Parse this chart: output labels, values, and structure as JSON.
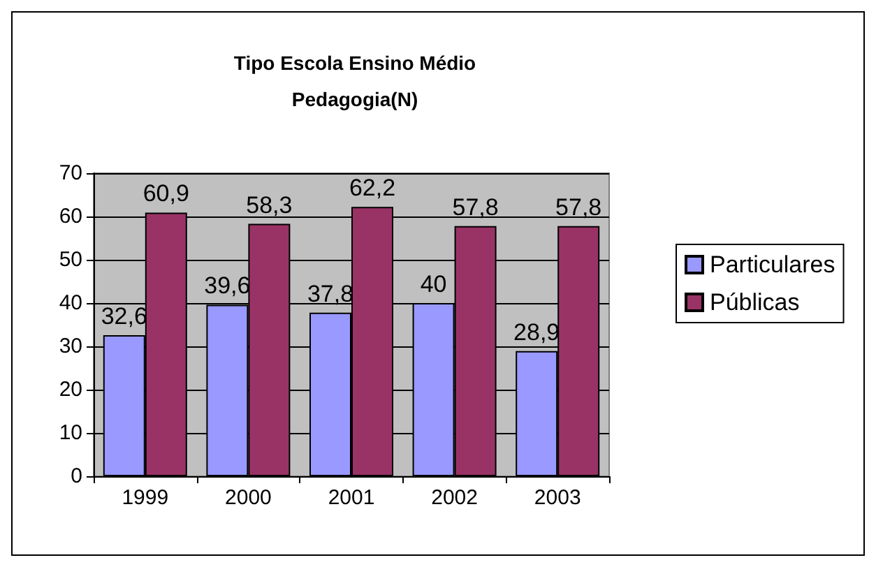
{
  "chart_data": {
    "type": "bar",
    "title": "Tipo Escola Ensino Médio\nPedagogia(N)",
    "categories": [
      "1999",
      "2000",
      "2001",
      "2002",
      "2003"
    ],
    "series": [
      {
        "name": "Particulares",
        "color": "#9999ff",
        "values": [
          32.6,
          39.6,
          37.8,
          40,
          28.9
        ],
        "value_labels": [
          "32,6",
          "39,6",
          "37,8",
          "40",
          "28,9"
        ]
      },
      {
        "name": "Públicas",
        "color": "#993366",
        "values": [
          60.9,
          58.3,
          62.2,
          57.8,
          57.8
        ],
        "value_labels": [
          "60,9",
          "58,3",
          "62,2",
          "57,8",
          "57,8"
        ]
      }
    ],
    "ylim": [
      0,
      70
    ],
    "yticks": [
      0,
      10,
      20,
      30,
      40,
      50,
      60,
      70
    ],
    "grid": "y",
    "legend": "right"
  }
}
